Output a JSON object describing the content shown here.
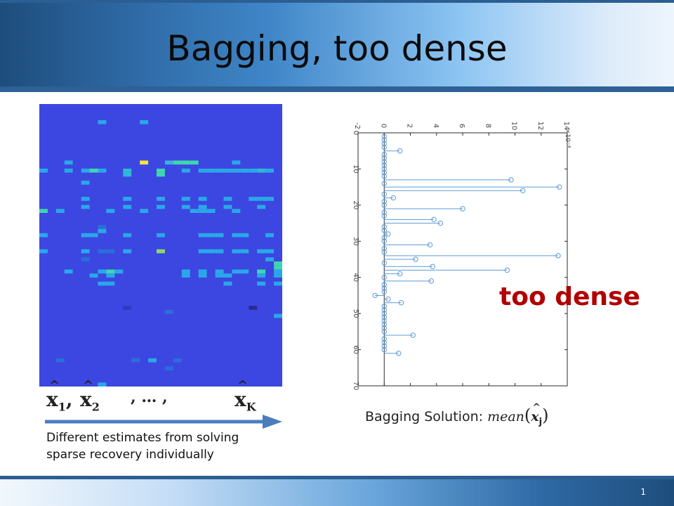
{
  "slide": {
    "title": "Bagging, too dense",
    "page_number": "1"
  },
  "left_panel": {
    "estimates": {
      "symbol": "x",
      "hat": "^",
      "sub_1": "1",
      "sub_2": "2",
      "ellipsis": ", … ,",
      "sub_k": "K",
      "comma": ","
    },
    "caption_line1": "Different estimates from solving",
    "caption_line2": "sparse recovery individually",
    "colors": {
      "background": "#3b47e0",
      "accent_arrow": "#4a7dbe"
    }
  },
  "right_panel": {
    "annotation": "too dense",
    "annotation_color": "#b00000",
    "bagging_label_text": "Bagging Solution: ",
    "bagging_label_func": "mean",
    "bagging_label_sub": "j"
  },
  "chart_data": {
    "type": "stem",
    "orientation": "rotated",
    "x": [
      1,
      2,
      3,
      4,
      5,
      6,
      7,
      8,
      9,
      10,
      11,
      12,
      13,
      14,
      15,
      16,
      17,
      18,
      19,
      20,
      21,
      22,
      23,
      24,
      25,
      26,
      27,
      28,
      29,
      30,
      31,
      32,
      33,
      34,
      35,
      36,
      37,
      38,
      39,
      40,
      41,
      42,
      43,
      44,
      45,
      46,
      47,
      48,
      49,
      50,
      51,
      52,
      53,
      54,
      55,
      56,
      57,
      58,
      59,
      60,
      61
    ],
    "values": [
      0,
      0,
      0,
      0,
      1.2,
      0,
      0,
      0,
      0,
      0,
      0,
      0,
      9.7,
      0,
      13.4,
      10.6,
      0,
      0.7,
      0,
      0,
      6.0,
      0,
      0,
      3.8,
      4.3,
      0,
      0,
      0.3,
      0,
      0,
      3.5,
      0,
      0,
      13.3,
      2.4,
      0,
      3.7,
      9.4,
      1.2,
      0,
      3.6,
      0,
      0,
      0,
      -0.7,
      0.3,
      1.3,
      0,
      0,
      0,
      0,
      0,
      0,
      0,
      0,
      2.2,
      0,
      0,
      0,
      0,
      1.1
    ],
    "xlim": [
      0,
      70
    ],
    "ylim": [
      -2,
      14
    ],
    "xticks": [
      "0",
      "10",
      "20",
      "30",
      "40",
      "50",
      "60",
      "70"
    ],
    "yticks": [
      "-2",
      "0",
      "2",
      "4",
      "6",
      "8",
      "10",
      "12",
      "14"
    ],
    "scale_label": "×10⁻⁴"
  }
}
